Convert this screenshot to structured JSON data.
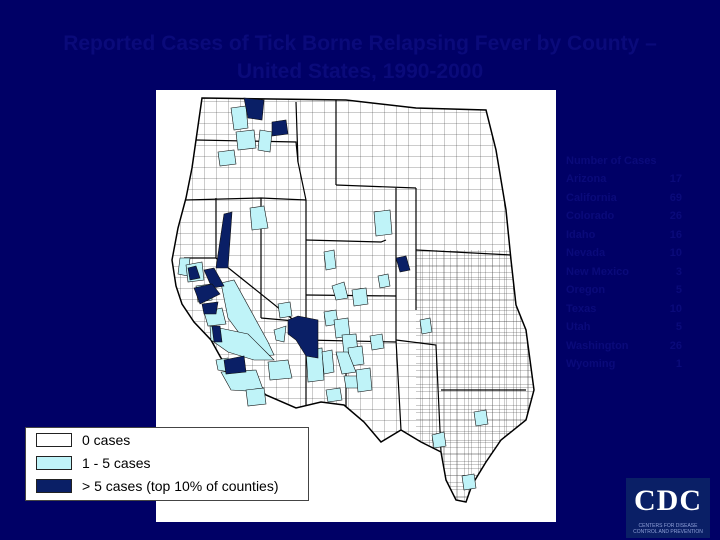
{
  "title": {
    "line1": "Reported Cases of Tick Borne Relapsing Fever by County –",
    "line2": "United States, 1990-2000"
  },
  "state_list": {
    "header": "Number of Cases",
    "rows": [
      {
        "state": "Arizona",
        "count": "17"
      },
      {
        "state": "California",
        "count": "69"
      },
      {
        "state": "Colorado",
        "count": "26"
      },
      {
        "state": "Idaho",
        "count": "16"
      },
      {
        "state": "Nevada",
        "count": "10"
      },
      {
        "state": "New Mexico",
        "count": "3"
      },
      {
        "state": "Oregon",
        "count": "5"
      },
      {
        "state": "Texas",
        "count": "10"
      },
      {
        "state": "Utah",
        "count": "5"
      },
      {
        "state": "Washington",
        "count": "26"
      },
      {
        "state": "Wyoming",
        "count": "1"
      }
    ]
  },
  "legend": {
    "items": [
      {
        "label": "0 cases",
        "color": "#ffffff"
      },
      {
        "label": "1 - 5 cases",
        "color": "#bff3f8"
      },
      {
        "label": "> 5 cases (top 10% of counties)",
        "color": "#0a1f66"
      }
    ]
  },
  "map_colors": {
    "none": "#ffffff",
    "low": "#bff3f8",
    "high": "#0a1f66",
    "border": "#111111"
  },
  "logo": {
    "text": "CDC",
    "subtext": "CENTERS FOR DISEASE CONTROL AND PREVENTION"
  }
}
